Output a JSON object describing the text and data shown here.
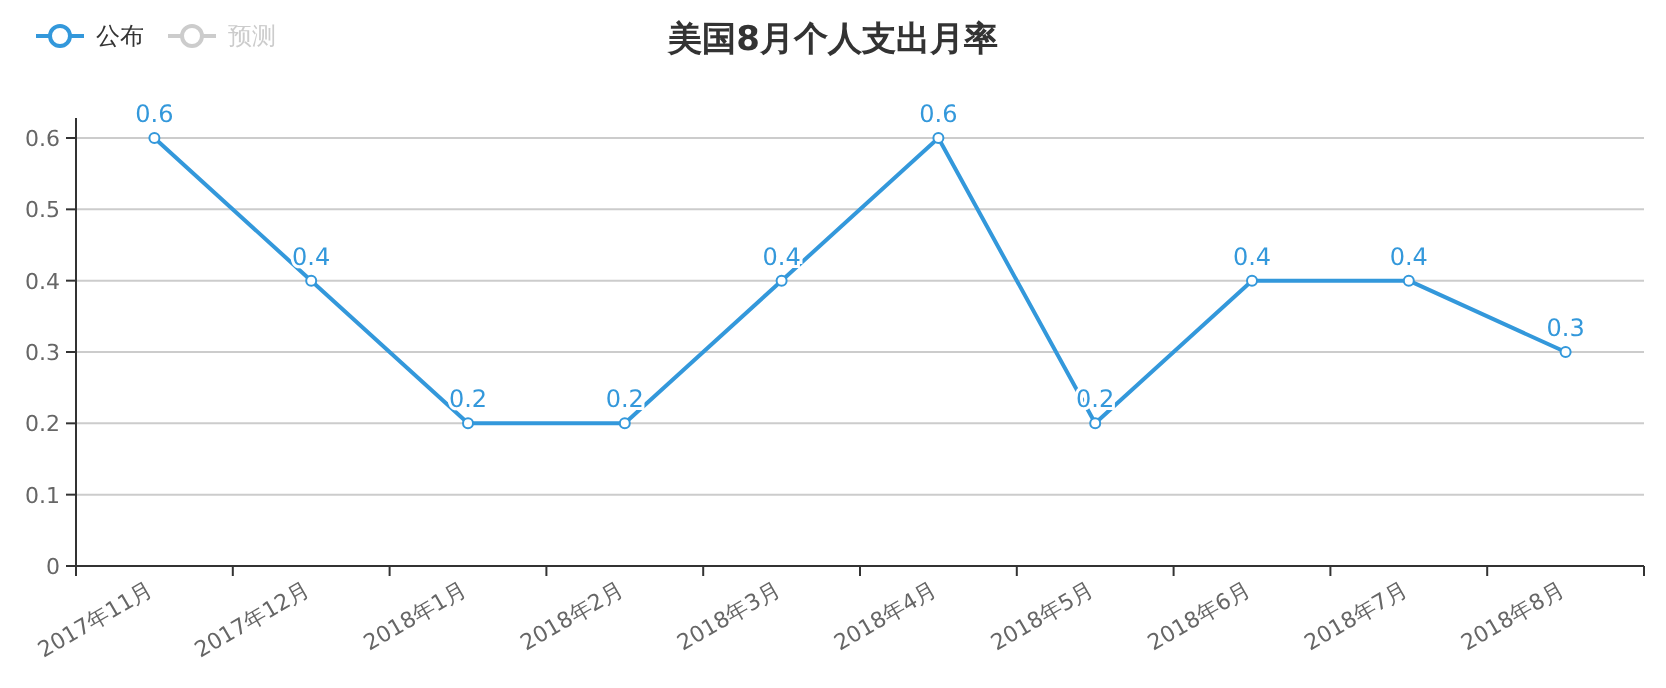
{
  "chart_data": {
    "type": "line",
    "title": "美国8月个人支出月率",
    "categories": [
      "2017年11月",
      "2017年12月",
      "2018年1月",
      "2018年2月",
      "2018年3月",
      "2018年4月",
      "2018年5月",
      "2018年6月",
      "2018年7月",
      "2018年8月"
    ],
    "series": [
      {
        "name": "公布",
        "color": "#3398db",
        "values": [
          0.6,
          0.4,
          0.2,
          0.2,
          0.4,
          0.6,
          0.2,
          0.4,
          0.4,
          0.3
        ]
      },
      {
        "name": "预测",
        "color": "#cccccc",
        "values": [
          null,
          null,
          null,
          null,
          null,
          null,
          null,
          null,
          null,
          null
        ]
      }
    ],
    "ylim": [
      0,
      0.6
    ],
    "yticks": [
      0,
      0.1,
      0.2,
      0.3,
      0.4,
      0.5,
      0.6
    ],
    "grid": "y",
    "legend": "top left",
    "marker": "circle",
    "line_style": "solid",
    "data_labels": true
  }
}
